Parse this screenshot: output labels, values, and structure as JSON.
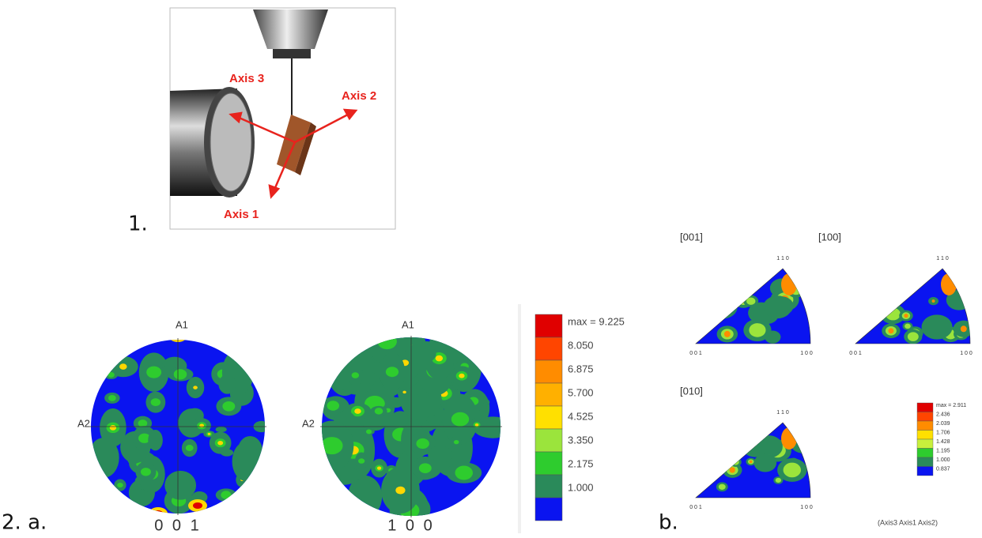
{
  "panel_labels": {
    "one": "1.",
    "two_a": "2. a.",
    "b": "b."
  },
  "schematic": {
    "axis_labels": [
      "Axis 3",
      "Axis 2",
      "Axis 1"
    ]
  },
  "pole_figures": [
    {
      "caption": "0 0 1",
      "top_label": "A1",
      "left_label": "A2"
    },
    {
      "caption": "1 0 0",
      "top_label": "A1",
      "left_label": "A2"
    }
  ],
  "pole_legend": [
    "max = 9.225",
    "8.050",
    "6.875",
    "5.700",
    "4.525",
    "3.350",
    "2.175",
    "1.000"
  ],
  "inverse_pole_figures": [
    {
      "title": "[001]",
      "top": "1 1 0",
      "left": "0 0 1",
      "right": "1 0 0"
    },
    {
      "title": "[100]",
      "top": "1 1 0",
      "left": "0 0 1",
      "right": "1 0 0"
    },
    {
      "title": "[010]",
      "top": "1 1 0",
      "left": "0 0 1",
      "right": "1 0 0"
    }
  ],
  "ipf_legend": [
    "max = 2.911",
    "2.436",
    "2.039",
    "1.706",
    "1.428",
    "1.195",
    "1.000",
    "0.837"
  ],
  "ipf_note": "(Axis3 Axis1 Axis2)"
}
